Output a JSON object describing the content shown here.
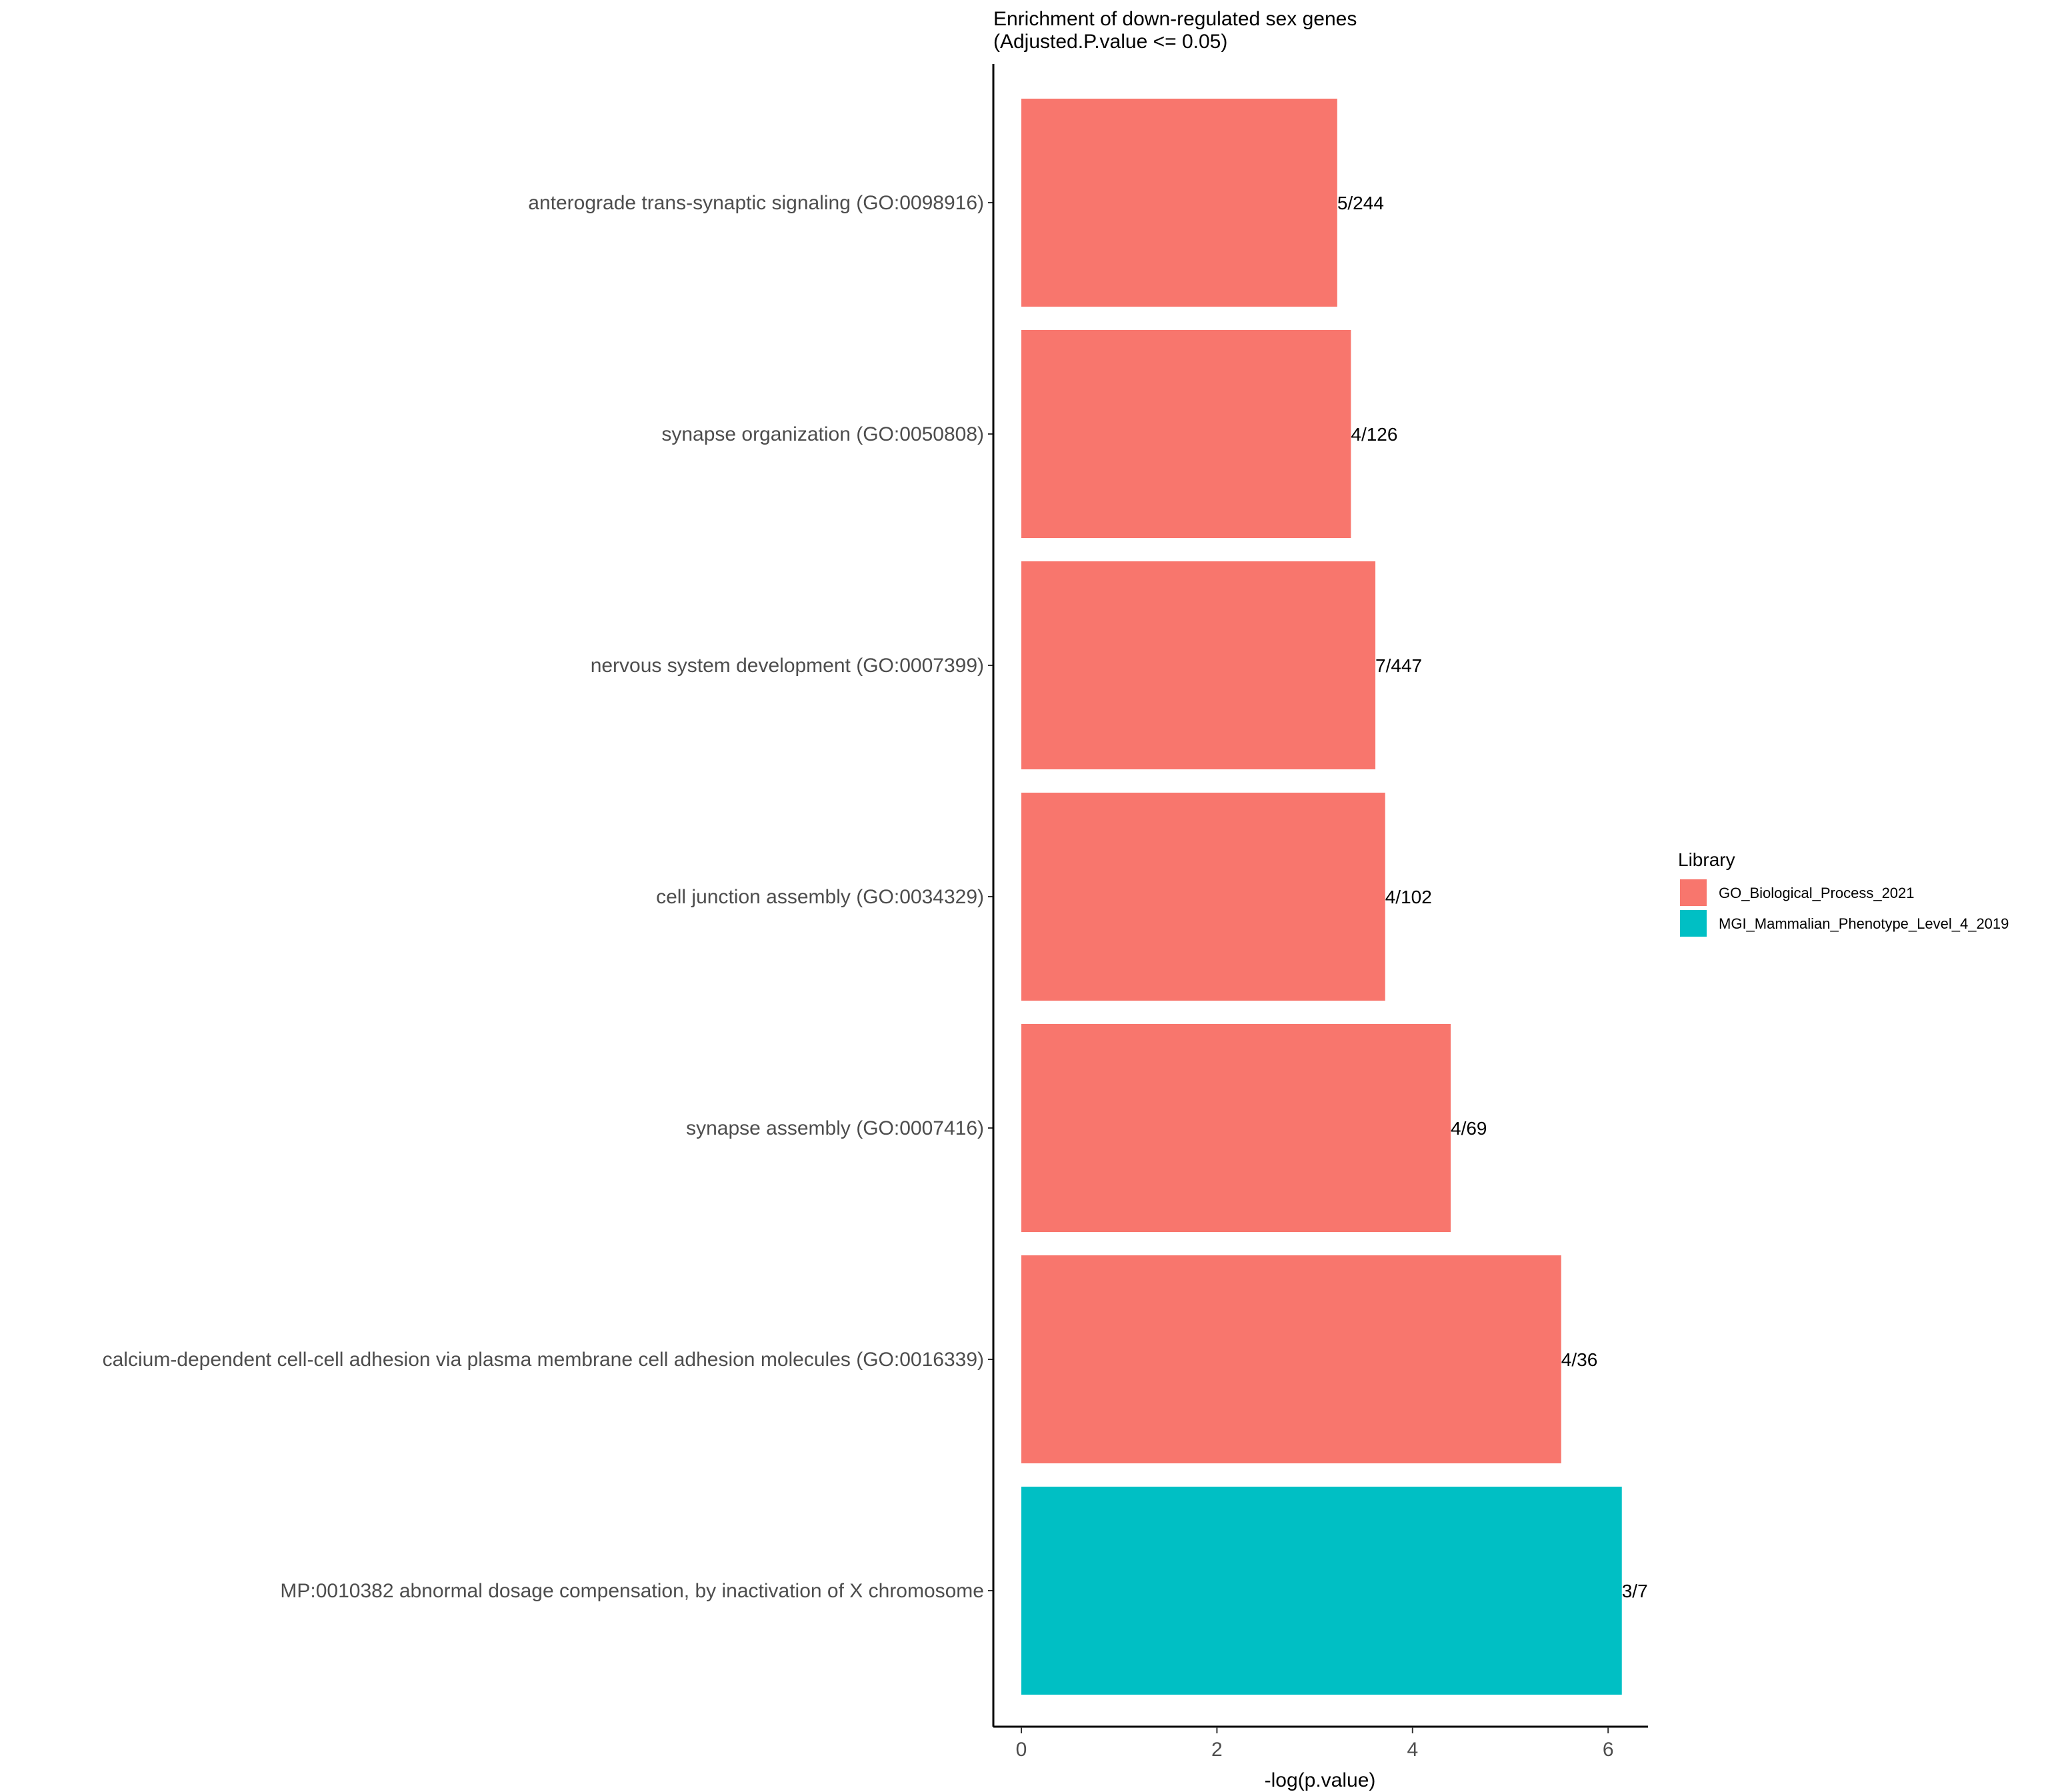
{
  "chart_data": {
    "type": "bar",
    "orientation": "horizontal",
    "title": "Enrichment of down-regulated sex genes",
    "subtitle": "(Adjusted.P.value <= 0.05)",
    "xlabel": "-log(p.value)",
    "ylabel": "",
    "xlim": [
      0,
      6.5
    ],
    "x_ticks": [
      0,
      2,
      4,
      6
    ],
    "grid": false,
    "legend_position": "right",
    "legend_title": "Library",
    "libraries": [
      {
        "name": "GO_Biological_Process_2021",
        "color": "#F8766D"
      },
      {
        "name": "MGI_Mammalian_Phenotype_Level_4_2019",
        "color": "#00BFC4"
      }
    ],
    "categories": [
      "anterograde trans-synaptic signaling (GO:0098916)",
      "synapse organization (GO:0050808)",
      "nervous system development (GO:0007399)",
      "cell junction assembly (GO:0034329)",
      "synapse assembly (GO:0007416)",
      "calcium-dependent cell-cell adhesion via plasma membrane cell adhesion molecules (GO:0016339)",
      "MP:0010382 abnormal dosage compensation, by inactivation of X chromosome"
    ],
    "values": [
      3.23,
      3.37,
      3.62,
      3.72,
      4.39,
      5.52,
      6.14
    ],
    "labels": [
      "5/244",
      "4/126",
      "7/447",
      "4/102",
      "4/69",
      "4/36",
      "3/7"
    ],
    "library_index": [
      0,
      0,
      0,
      0,
      0,
      0,
      1
    ]
  }
}
